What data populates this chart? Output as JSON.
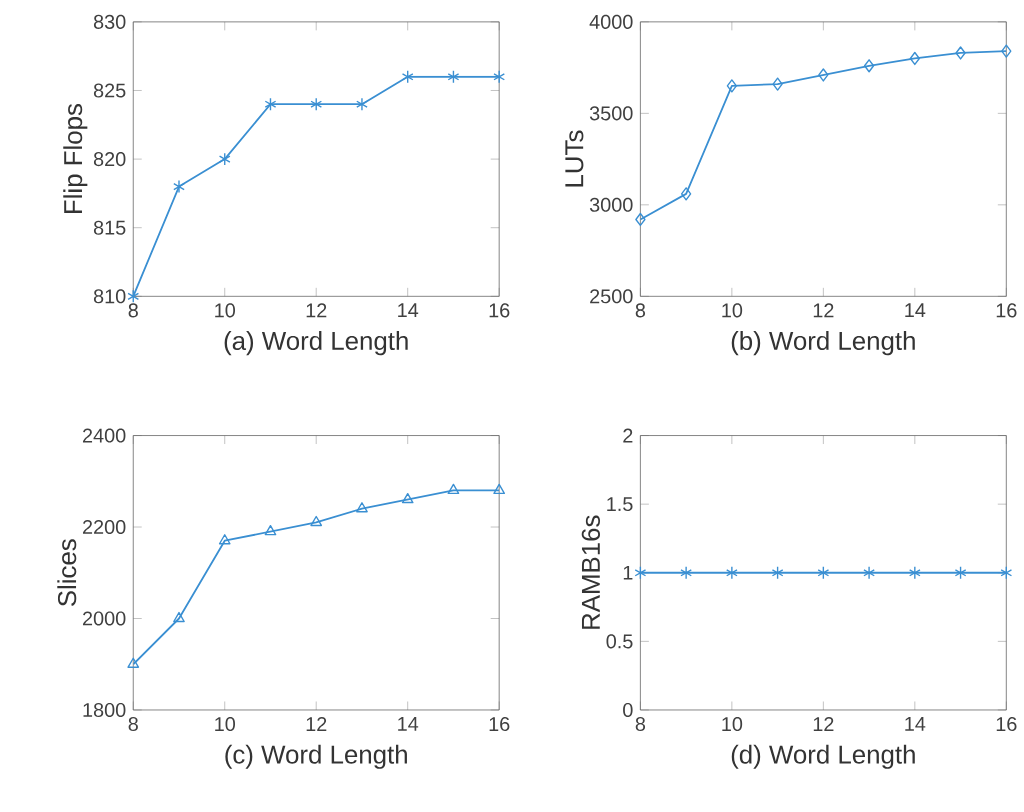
{
  "chart_data": [
    {
      "type": "line",
      "xlabel": "(a) Word Length",
      "ylabel": "Flip Flops",
      "x": [
        8,
        9,
        10,
        11,
        12,
        13,
        14,
        15,
        16
      ],
      "values": [
        810,
        818,
        820,
        824,
        824,
        824,
        826,
        826,
        826
      ],
      "color": "#3a8fd2",
      "marker": "cross",
      "xlim": [
        8,
        16
      ],
      "xticks": [
        8,
        10,
        12,
        14,
        16
      ],
      "ylim": [
        810,
        830
      ],
      "yticks": [
        810,
        815,
        820,
        825,
        830
      ]
    },
    {
      "type": "line",
      "xlabel": "(b) Word Length",
      "ylabel": "LUTs",
      "x": [
        8,
        9,
        10,
        11,
        12,
        13,
        14,
        15,
        16
      ],
      "values": [
        2920,
        3060,
        3650,
        3660,
        3710,
        3760,
        3800,
        3830,
        3840
      ],
      "color": "#3a8fd2",
      "marker": "diamond",
      "xlim": [
        8,
        16
      ],
      "xticks": [
        8,
        10,
        12,
        14,
        16
      ],
      "ylim": [
        2500,
        4000
      ],
      "yticks": [
        2500,
        3000,
        3500,
        4000
      ]
    },
    {
      "type": "line",
      "xlabel": "(c) Word Length",
      "ylabel": "Slices",
      "x": [
        8,
        9,
        10,
        11,
        12,
        13,
        14,
        15,
        16
      ],
      "values": [
        1900,
        2000,
        2170,
        2190,
        2210,
        2240,
        2260,
        2280,
        2280
      ],
      "color": "#3a8fd2",
      "marker": "triangle",
      "xlim": [
        8,
        16
      ],
      "xticks": [
        8,
        10,
        12,
        14,
        16
      ],
      "ylim": [
        1800,
        2400
      ],
      "yticks": [
        1800,
        2000,
        2200,
        2400
      ]
    },
    {
      "type": "line",
      "xlabel": "(d) Word Length",
      "ylabel": "RAMB16s",
      "x": [
        8,
        9,
        10,
        11,
        12,
        13,
        14,
        15,
        16
      ],
      "values": [
        1,
        1,
        1,
        1,
        1,
        1,
        1,
        1,
        1
      ],
      "color": "#3a8fd2",
      "marker": "cross",
      "xlim": [
        8,
        16
      ],
      "xticks": [
        8,
        10,
        12,
        14,
        16
      ],
      "ylim": [
        0,
        2
      ],
      "yticks": [
        0,
        0.5,
        1,
        1.5,
        2
      ]
    }
  ]
}
